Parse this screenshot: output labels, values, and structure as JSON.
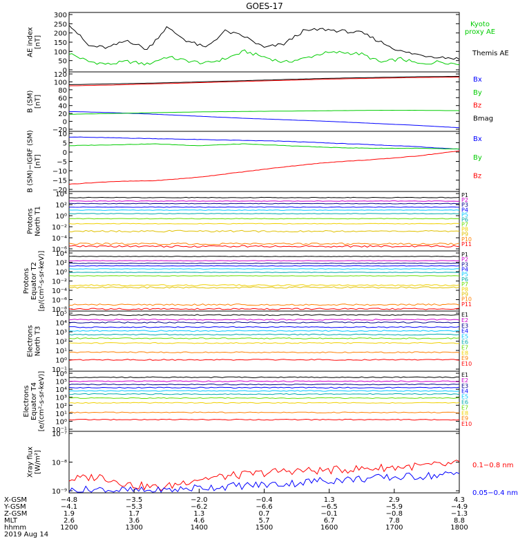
{
  "title": "GOES-17",
  "colors": {
    "black": "#000000",
    "green": "#00cc00",
    "blue": "#0000ff",
    "red": "#ff0000",
    "navy": "#00008b",
    "cyan": "#00c8ff",
    "yellow": "#f0d000",
    "orange": "#ff8000",
    "lime": "#66dd00",
    "teal": "#00aaaa",
    "darkred": "#aa0000",
    "purple": "#cc00cc",
    "gold": "#e0c000"
  },
  "chart_data": [
    {
      "type": "line",
      "panel": "ae",
      "ylabel": [
        "AE index",
        "[nT]"
      ],
      "yticks": [
        "300",
        "250",
        "200",
        "150",
        "100",
        "50",
        "0"
      ],
      "ylim": [
        0,
        300
      ],
      "series": [
        {
          "name": "Kyoto proxy AE",
          "name_lines": [
            "Kyoto",
            "proxy AE"
          ],
          "color": "green",
          "x": [
            0,
            0.05,
            0.1,
            0.15,
            0.2,
            0.25,
            0.3,
            0.35,
            0.4,
            0.45,
            0.5,
            0.55,
            0.6,
            0.65,
            0.7,
            0.75,
            0.8,
            0.85,
            0.9,
            0.95,
            1.0
          ],
          "values": [
            90,
            45,
            30,
            45,
            30,
            70,
            50,
            35,
            60,
            100,
            70,
            40,
            60,
            90,
            95,
            85,
            40,
            60,
            30,
            45,
            30
          ]
        },
        {
          "name": "Themis AE",
          "name_lines": [
            "Themis AE"
          ],
          "color": "black",
          "x": [
            0,
            0.05,
            0.1,
            0.15,
            0.2,
            0.25,
            0.3,
            0.35,
            0.4,
            0.45,
            0.5,
            0.55,
            0.6,
            0.65,
            0.7,
            0.75,
            0.8,
            0.85,
            0.9,
            0.95,
            1.0
          ],
          "values": [
            250,
            130,
            120,
            160,
            110,
            230,
            160,
            120,
            210,
            180,
            120,
            140,
            210,
            220,
            210,
            200,
            150,
            100,
            80,
            70,
            60
          ]
        }
      ]
    },
    {
      "type": "line",
      "panel": "bsm",
      "ylabel": [
        "B (SM)",
        "[nT]"
      ],
      "yticks": [
        "120",
        "100",
        "80",
        "60",
        "40",
        "20",
        "0",
        "−20"
      ],
      "ylim": [
        -20,
        120
      ],
      "series": [
        {
          "name": "Bx",
          "color": "blue",
          "values": [
            25,
            22,
            18,
            13,
            8,
            4,
            0,
            -5,
            -10,
            -16
          ]
        },
        {
          "name": "By",
          "color": "green",
          "values": [
            18,
            20,
            22,
            24,
            25,
            26,
            27,
            28,
            28,
            27
          ]
        },
        {
          "name": "Bz",
          "color": "red",
          "values": [
            90,
            92,
            95,
            98,
            101,
            104,
            107,
            109,
            111,
            112
          ]
        },
        {
          "name": "Bmag",
          "color": "black",
          "values": [
            93,
            95,
            97,
            100,
            103,
            106,
            109,
            111,
            113,
            114
          ]
        }
      ]
    },
    {
      "type": "line",
      "panel": "bsmigrf",
      "ylabel": [
        "B (SM)−IGRF (SM)",
        "[nT]"
      ],
      "yticks": [
        "10",
        "5",
        "0",
        "−5",
        "−10",
        "−15",
        "−20"
      ],
      "ylim": [
        -20,
        12
      ],
      "series": [
        {
          "name": "Bx",
          "color": "blue",
          "values": [
            10,
            9.5,
            9,
            8.5,
            8,
            7.5,
            6.5,
            5.5,
            4.5,
            3
          ]
        },
        {
          "name": "By",
          "color": "green",
          "values": [
            5,
            5.5,
            6,
            5,
            6,
            5,
            4,
            3.5,
            3.5,
            3
          ]
        },
        {
          "name": "Bz",
          "color": "red",
          "values": [
            -17,
            -15.5,
            -15,
            -13,
            -10,
            -7,
            -4.5,
            -3,
            -1,
            2
          ]
        }
      ]
    },
    {
      "type": "line",
      "panel": "protons_t1",
      "log": true,
      "ylabel": [
        "Protons",
        "North T1"
      ],
      "yticks": [
        "10⁴",
        "10²",
        "10⁰",
        "10⁻²",
        "10⁻⁴",
        "10⁻⁶"
      ],
      "ylim_exp": [
        -7,
        4
      ],
      "series": [
        {
          "name": "P1",
          "color": "black",
          "level": 3.2
        },
        {
          "name": "P2",
          "color": "purple",
          "level": 2.5
        },
        {
          "name": "P3",
          "color": "navy",
          "level": 2.0
        },
        {
          "name": "P4",
          "color": "blue",
          "level": 1.3
        },
        {
          "name": "P5",
          "color": "cyan",
          "level": 0.7
        },
        {
          "name": "P6",
          "color": "teal",
          "level": 0.0
        },
        {
          "name": "P7",
          "color": "lime",
          "level": -1.0
        },
        {
          "name": "P8",
          "color": "yellow",
          "level": -2.0
        },
        {
          "name": "P9",
          "color": "gold",
          "level": -3.5
        },
        {
          "name": "P10",
          "color": "orange",
          "level": -6.0
        },
        {
          "name": "P11",
          "color": "red",
          "level": -6.5
        }
      ]
    },
    {
      "type": "line",
      "panel": "protons_t2",
      "log": true,
      "ylabel": [
        "Protons",
        "Equator T2",
        "[p/(cm²-s-sr-keV)]"
      ],
      "yticks": [
        "10⁴",
        "10²",
        "10⁰",
        "10⁻²",
        "10⁻⁴",
        "10⁻⁶",
        "10⁻⁸"
      ],
      "ylim_exp": [
        -9,
        4
      ],
      "series": [
        {
          "name": "P1",
          "color": "black",
          "level": 3.2
        },
        {
          "name": "P2",
          "color": "purple",
          "level": 2.2
        },
        {
          "name": "P3",
          "color": "navy",
          "level": 1.6
        },
        {
          "name": "P4",
          "color": "blue",
          "level": 1.0
        },
        {
          "name": "P5",
          "color": "cyan",
          "level": 0.3
        },
        {
          "name": "P6",
          "color": "teal",
          "level": -0.5
        },
        {
          "name": "P7",
          "color": "lime",
          "level": -1.3
        },
        {
          "name": "P8",
          "color": "yellow",
          "level": -3.5
        },
        {
          "name": "P9",
          "color": "gold",
          "level": -4.0
        },
        {
          "name": "P10",
          "color": "orange",
          "level": -8.0
        },
        {
          "name": "P11",
          "color": "red",
          "level": -9.0
        }
      ]
    },
    {
      "type": "line",
      "panel": "electrons_t3",
      "log": true,
      "ylabel": [
        "Electrons",
        "North T3"
      ],
      "yticks": [
        "10⁵",
        "10⁴",
        "10³",
        "10²",
        "10¹",
        "10⁰",
        "10⁻¹"
      ],
      "ylim_exp": [
        -1,
        5
      ],
      "series": [
        {
          "name": "E1",
          "color": "black",
          "level": 4.8
        },
        {
          "name": "E2",
          "color": "purple",
          "level": 4.3
        },
        {
          "name": "E3",
          "color": "navy",
          "level": 4.0
        },
        {
          "name": "E4",
          "color": "blue",
          "level": 3.5
        },
        {
          "name": "E5",
          "color": "cyan",
          "level": 3.1
        },
        {
          "name": "E6",
          "color": "teal",
          "level": 2.7
        },
        {
          "name": "E7",
          "color": "lime",
          "level": 2.3
        },
        {
          "name": "E8",
          "color": "yellow",
          "level": 1.8
        },
        {
          "name": "E9",
          "color": "orange",
          "level": 0.8
        },
        {
          "name": "E10",
          "color": "red",
          "level": 0.0
        }
      ]
    },
    {
      "type": "line",
      "panel": "electrons_t4",
      "log": true,
      "ylabel": [
        "Electrons",
        "Equator T4",
        "[e/(cm²-s-sr-keV)]"
      ],
      "yticks": [
        "10⁶",
        "10⁵",
        "10⁴",
        "10³",
        "10²",
        "10¹",
        "10⁰",
        "10⁻¹"
      ],
      "ylim_exp": [
        -1,
        6
      ],
      "series": [
        {
          "name": "E1",
          "color": "black",
          "level": 5.5
        },
        {
          "name": "E2",
          "color": "purple",
          "level": 5.0
        },
        {
          "name": "E3",
          "color": "navy",
          "level": 4.6
        },
        {
          "name": "E4",
          "color": "blue",
          "level": 4.2
        },
        {
          "name": "E5",
          "color": "cyan",
          "level": 3.8
        },
        {
          "name": "E6",
          "color": "teal",
          "level": 3.4
        },
        {
          "name": "E7",
          "color": "lime",
          "level": 2.9
        },
        {
          "name": "E8",
          "color": "yellow",
          "level": 2.3
        },
        {
          "name": "E9",
          "color": "orange",
          "level": 1.1
        },
        {
          "name": "E10",
          "color": "red",
          "level": 0.2
        }
      ]
    },
    {
      "type": "line",
      "panel": "xray",
      "log": true,
      "ylabel": [
        "Xray flux",
        "[W/m²]"
      ],
      "yticks": [
        "10⁻⁷",
        "10⁻⁸",
        "10⁻⁹"
      ],
      "ylim_exp": [
        -9,
        -7
      ],
      "series": [
        {
          "name": "0.1−0.8 nm",
          "color": "red",
          "x": [
            0,
            0.08,
            0.16,
            0.24,
            0.32,
            0.4,
            0.48,
            0.56,
            0.64,
            0.72,
            0.8,
            0.88,
            0.96,
            1.0
          ],
          "values_exp": [
            -8.6,
            -8.5,
            -8.8,
            -8.9,
            -8.6,
            -8.5,
            -8.4,
            -8.3,
            -8.3,
            -8.25,
            -8.2,
            -8.15,
            -8.1,
            -8.05
          ]
        },
        {
          "name": "0.05−0.4 nm",
          "color": "blue",
          "x": [
            0,
            0.08,
            0.16,
            0.24,
            0.32,
            0.4,
            0.48,
            0.56,
            0.64,
            0.72,
            0.8,
            0.88,
            0.96,
            1.0
          ],
          "values_exp": [
            -9.0,
            -8.95,
            -9.0,
            -9.0,
            -8.9,
            -8.85,
            -8.8,
            -8.75,
            -8.65,
            -8.6,
            -8.55,
            -8.5,
            -8.45,
            -8.4
          ]
        }
      ]
    }
  ],
  "x_axis": {
    "rows": [
      {
        "label": "X-GSM",
        "values": [
          "−4.8",
          "−3.5",
          "−2.0",
          "−0.4",
          "1.3",
          "2.9",
          "4.3"
        ]
      },
      {
        "label": "Y-GSM",
        "values": [
          "−4.1",
          "−5.3",
          "−6.2",
          "−6.6",
          "−6.5",
          "−5.9",
          "−4.9"
        ]
      },
      {
        "label": "Z-GSM",
        "values": [
          "1.9",
          "1.7",
          "1.3",
          "0.7",
          "−0.1",
          "−0.8",
          "−1.3"
        ]
      },
      {
        "label": "MLT",
        "values": [
          "2.6",
          "3.6",
          "4.6",
          "5.7",
          "6.7",
          "7.8",
          "8.8"
        ]
      },
      {
        "label": "hhmm",
        "values": [
          "1200",
          "1300",
          "1400",
          "1500",
          "1600",
          "1700",
          "1800"
        ]
      }
    ],
    "date": "2019 Aug 14"
  }
}
